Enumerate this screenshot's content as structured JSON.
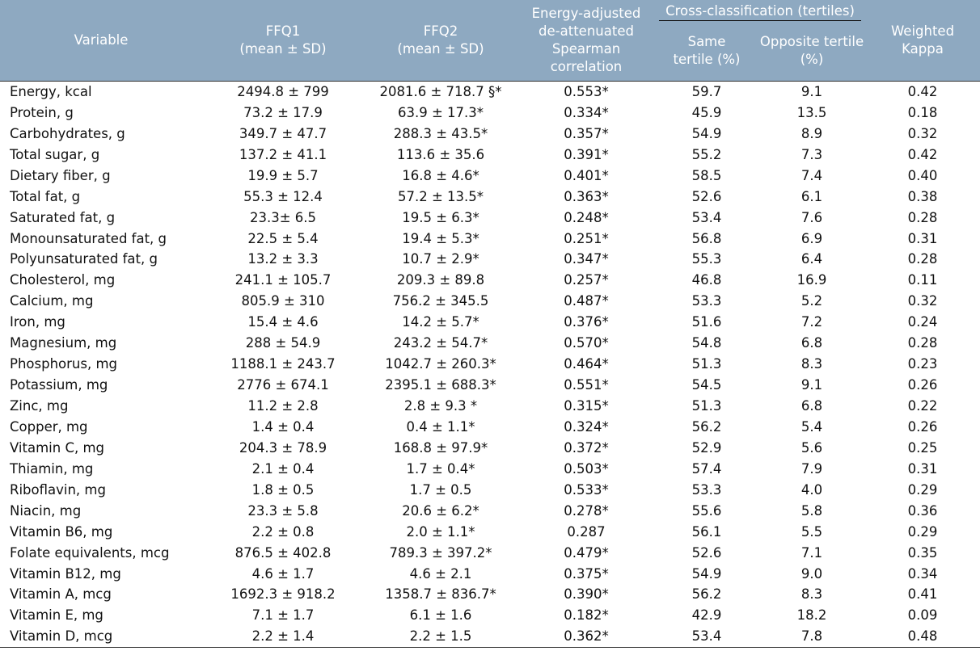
{
  "header": {
    "variable": "Variable",
    "ffq1": [
      "FFQ1",
      "(mean ± SD)"
    ],
    "ffq2": [
      "FFQ2",
      "(mean ± SD)"
    ],
    "corr": [
      "Energy-adjusted",
      "de-attenuated",
      "Spearman",
      "correlation"
    ],
    "cross": "Cross-classification (tertiles)",
    "same": [
      "Same",
      "tertile (%)"
    ],
    "opposite": [
      "Opposite tertile",
      "(%)"
    ],
    "kappa": [
      "Weighted",
      "Kappa"
    ]
  },
  "rows": [
    [
      "Energy, kcal",
      "2494.8 ± 799",
      "2081.6 ± 718.7 §*",
      "0.553*",
      "59.7",
      "9.1",
      "0.42"
    ],
    [
      "Protein, g",
      "73.2 ± 17.9",
      "63.9 ± 17.3*",
      "0.334*",
      "45.9",
      "13.5",
      "0.18"
    ],
    [
      "Carbohydrates, g",
      "349.7 ± 47.7",
      "288.3 ± 43.5*",
      "0.357*",
      "54.9",
      "8.9",
      "0.32"
    ],
    [
      "Total sugar, g",
      "137.2 ± 41.1",
      "113.6 ± 35.6",
      "0.391*",
      "55.2",
      "7.3",
      "0.42"
    ],
    [
      "Dietary fiber, g",
      "19.9 ± 5.7",
      "16.8 ± 4.6*",
      "0.401*",
      "58.5",
      "7.4",
      "0.40"
    ],
    [
      "Total fat, g",
      "55.3 ± 12.4",
      "57.2 ± 13.5*",
      "0.363*",
      "52.6",
      "6.1",
      "0.38"
    ],
    [
      "Saturated fat, g",
      "23.3± 6.5",
      "19.5 ± 6.3*",
      "0.248*",
      "53.4",
      "7.6",
      "0.28"
    ],
    [
      "Monounsaturated fat, g",
      "22.5 ± 5.4",
      "19.4 ± 5.3*",
      "0.251*",
      "56.8",
      "6.9",
      "0.31"
    ],
    [
      "Polyunsaturated fat, g",
      "13.2 ± 3.3",
      "10.7 ± 2.9*",
      "0.347*",
      "55.3",
      "6.4",
      "0.28"
    ],
    [
      "Cholesterol, mg",
      "241.1 ± 105.7",
      "209.3 ± 89.8",
      "0.257*",
      "46.8",
      "16.9",
      "0.11"
    ],
    [
      "Calcium, mg",
      "805.9 ± 310",
      "756.2 ± 345.5",
      "0.487*",
      "53.3",
      "5.2",
      "0.32"
    ],
    [
      "Iron, mg",
      "15.4 ± 4.6",
      "14.2 ± 5.7*",
      "0.376*",
      "51.6",
      "7.2",
      "0.24"
    ],
    [
      "Magnesium, mg",
      "288 ± 54.9",
      "243.2 ± 54.7*",
      "0.570*",
      "54.8",
      "6.8",
      "0.28"
    ],
    [
      "Phosphorus, mg",
      "1188.1 ± 243.7",
      "1042.7 ± 260.3*",
      "0.464*",
      "51.3",
      "8.3",
      "0.23"
    ],
    [
      "Potassium, mg",
      "2776 ± 674.1",
      "2395.1 ± 688.3*",
      "0.551*",
      "54.5",
      "9.1",
      "0.26"
    ],
    [
      "Zinc, mg",
      "11.2 ± 2.8",
      "2.8 ± 9.3 *",
      "0.315*",
      "51.3",
      "6.8",
      "0.22"
    ],
    [
      "Copper, mg",
      "1.4 ± 0.4",
      "0.4 ± 1.1*",
      "0.324*",
      "56.2",
      "5.4",
      "0.26"
    ],
    [
      "Vitamin C, mg",
      "204.3 ± 78.9",
      "168.8 ± 97.9*",
      "0.372*",
      "52.9",
      "5.6",
      "0.25"
    ],
    [
      "Thiamin, mg",
      "2.1 ± 0.4",
      "1.7 ± 0.4*",
      "0.503*",
      "57.4",
      "7.9",
      "0.31"
    ],
    [
      "Riboflavin, mg",
      "1.8 ± 0.5",
      "1.7 ± 0.5",
      "0.533*",
      "53.3",
      "4.0",
      "0.29"
    ],
    [
      "Niacin, mg",
      "23.3 ± 5.8",
      "20.6 ± 6.2*",
      "0.278*",
      "55.6",
      "5.8",
      "0.36"
    ],
    [
      "Vitamin B6, mg",
      "2.2 ± 0.8",
      "2.0 ± 1.1*",
      "0.287",
      "56.1",
      "5.5",
      "0.29"
    ],
    [
      "Folate equivalents, mcg",
      "876.5 ± 402.8",
      "789.3 ± 397.2*",
      "0.479*",
      "52.6",
      "7.1",
      "0.35"
    ],
    [
      "Vitamin B12, mg",
      "4.6 ± 1.7",
      "4.6 ± 2.1",
      "0.375*",
      "54.9",
      "9.0",
      "0.34"
    ],
    [
      "Vitamin A, mcg",
      "1692.3 ± 918.2",
      "1358.7 ± 836.7*",
      "0.390*",
      "56.2",
      "8.3",
      "0.41"
    ],
    [
      "Vitamin E, mg",
      "7.1 ± 1.7",
      "6.1 ± 1.6",
      "0.182*",
      "42.9",
      "18.2",
      "0.09"
    ],
    [
      "Vitamin D, mcg",
      "2.2 ± 1.4",
      "2.2 ± 1.5",
      "0.362*",
      "53.4",
      "7.8",
      "0.48"
    ]
  ]
}
